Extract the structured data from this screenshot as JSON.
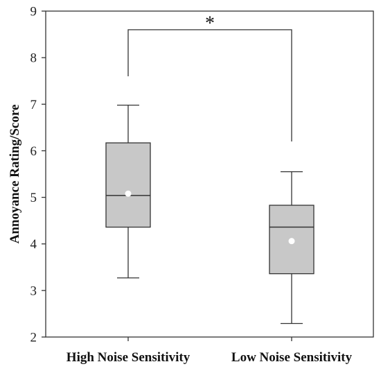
{
  "chart_data": {
    "type": "box",
    "ylabel": "Annoyance Rating/Score",
    "ylim": [
      2,
      9
    ],
    "yticks": [
      "2",
      "3",
      "4",
      "5",
      "6",
      "7",
      "8",
      "9"
    ],
    "categories": [
      "High Noise Sensitivity",
      "Low Noise Sensitivity"
    ],
    "boxes": [
      {
        "category": "High Noise Sensitivity",
        "whisker_low": 3.27,
        "q1": 4.36,
        "median": 5.04,
        "q3": 6.17,
        "whisker_high": 6.98,
        "mean": 5.08
      },
      {
        "category": "Low Noise Sensitivity",
        "whisker_low": 2.29,
        "q1": 3.36,
        "median": 4.36,
        "q3": 4.83,
        "whisker_high": 5.55,
        "mean": 4.06
      }
    ],
    "significance": {
      "label": "*",
      "bracket_y": 8.6,
      "left_drop_y": 7.6,
      "right_drop_y": 6.2
    },
    "colors": {
      "box_fill": "#c8c8c8",
      "stroke": "#333333",
      "mean_marker": "#ffffff"
    },
    "grid": false,
    "legend": "none"
  }
}
